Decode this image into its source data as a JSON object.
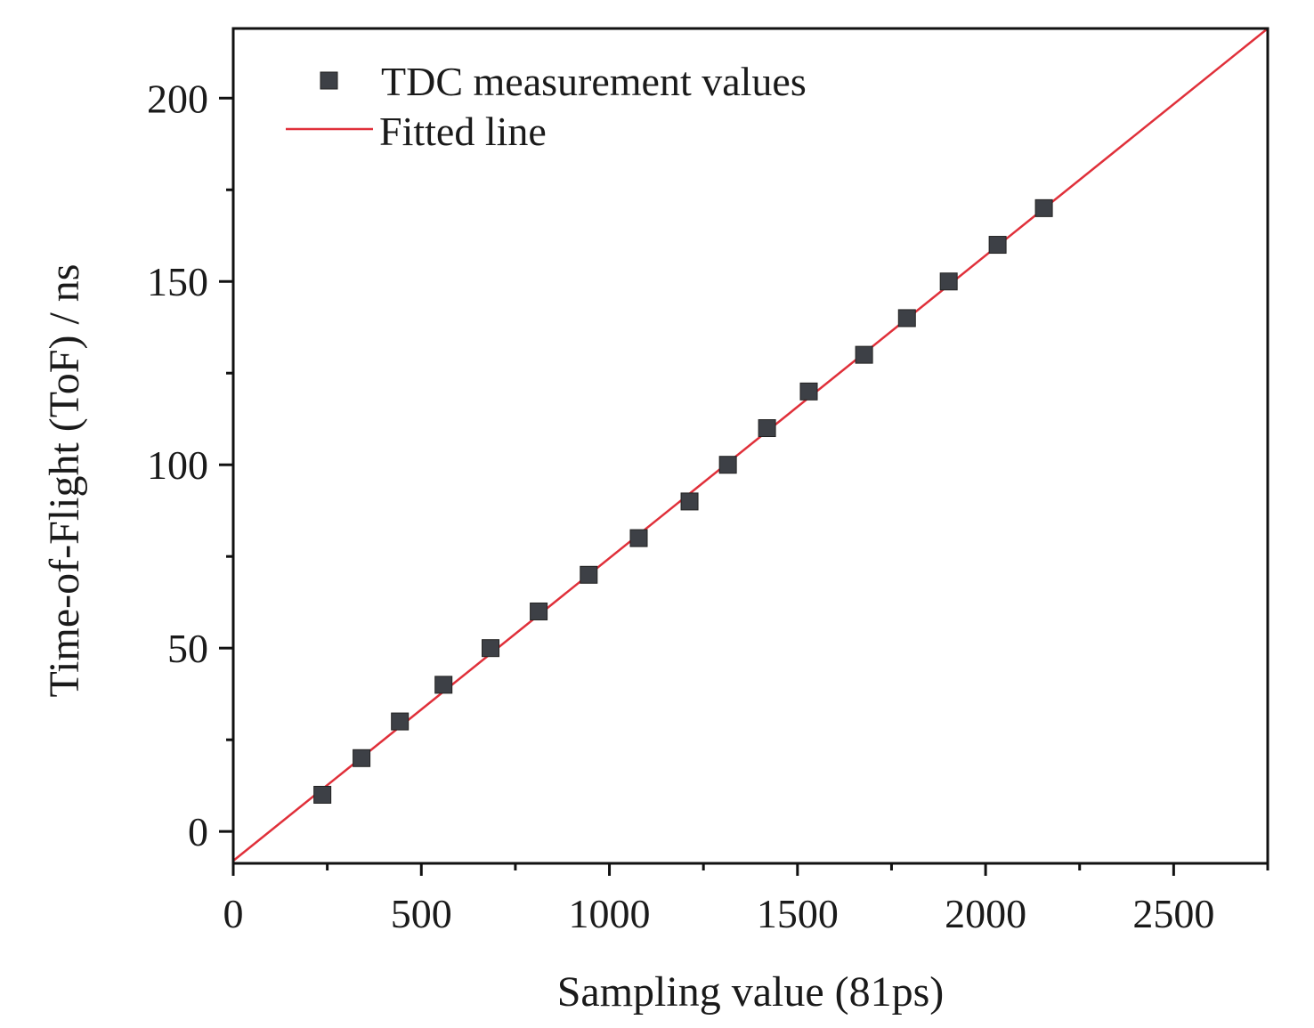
{
  "chart_data": {
    "type": "scatter",
    "title": "",
    "xlabel": "Sampling value (81ps)",
    "ylabel": "Time-of-Flight (ToF) / ns",
    "xlim": [
      0,
      2750
    ],
    "ylim": [
      -8.7,
      219
    ],
    "xticks": [
      0,
      500,
      1000,
      1500,
      2000,
      2500
    ],
    "xtick_labels": [
      "0",
      "500",
      "1000",
      "1500",
      "2000",
      "2500"
    ],
    "xminor": [
      250,
      750,
      1250,
      1750,
      2250,
      2750
    ],
    "yticks": [
      0,
      50,
      100,
      150,
      200
    ],
    "ytick_labels": [
      "0",
      "50",
      "100",
      "150",
      "200"
    ],
    "yminor": [
      25,
      75,
      125,
      175
    ],
    "grid": false,
    "legend": {
      "position": "top-left",
      "entries": [
        "TDC measurement values",
        "Fitted line"
      ]
    },
    "series": [
      {
        "name": "TDC measurement values",
        "kind": "scatter",
        "marker": "square",
        "color": "#3d4046",
        "x": [
          237,
          341,
          443,
          559,
          684,
          812,
          945,
          1078,
          1213,
          1315,
          1419,
          1530,
          1677,
          1791,
          1902,
          2032,
          2155
        ],
        "y": [
          10,
          20,
          30,
          40,
          50,
          60,
          70,
          80,
          90,
          100,
          110,
          120,
          130,
          140,
          150,
          160,
          170
        ]
      },
      {
        "name": "Fitted line",
        "kind": "line",
        "color": "#e0303a",
        "x": [
          0,
          2750
        ],
        "y": [
          -8,
          219
        ]
      }
    ]
  }
}
